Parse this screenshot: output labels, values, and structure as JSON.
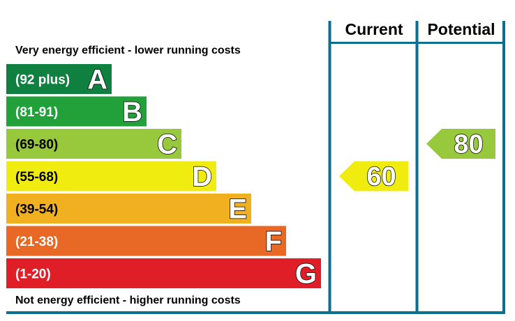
{
  "chart_data": {
    "type": "bar",
    "top_caption": "Very energy efficient - lower running costs",
    "bottom_caption": "Not energy efficient - higher running costs",
    "columns": [
      "Current",
      "Potential"
    ],
    "bands": [
      {
        "letter": "A",
        "range": "(92 plus)",
        "min": 92,
        "max": 100,
        "color": "#108040"
      },
      {
        "letter": "B",
        "range": "(81-91)",
        "min": 81,
        "max": 91,
        "color": "#22a03a"
      },
      {
        "letter": "C",
        "range": "(69-80)",
        "min": 69,
        "max": 80,
        "color": "#98c83c"
      },
      {
        "letter": "D",
        "range": "(55-68)",
        "min": 55,
        "max": 68,
        "color": "#f0ec10"
      },
      {
        "letter": "E",
        "range": "(39-54)",
        "min": 39,
        "max": 54,
        "color": "#f0b020"
      },
      {
        "letter": "F",
        "range": "(21-38)",
        "min": 21,
        "max": 38,
        "color": "#e86826"
      },
      {
        "letter": "G",
        "range": "(1-20)",
        "min": 1,
        "max": 20,
        "color": "#e01e28"
      }
    ],
    "current": {
      "value": 60,
      "band": "D"
    },
    "potential": {
      "value": 80,
      "band": "C"
    },
    "frame_color": "#0e6f8c"
  }
}
